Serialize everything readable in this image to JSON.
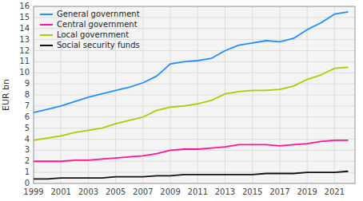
{
  "chart_data": {
    "type": "line",
    "y_label": "EUR bn",
    "x": [
      1999,
      2000,
      2001,
      2002,
      2003,
      2004,
      2005,
      2006,
      2007,
      2008,
      2009,
      2010,
      2011,
      2012,
      2013,
      2014,
      2015,
      2016,
      2017,
      2018,
      2019,
      2020,
      2021,
      2022
    ],
    "series": [
      {
        "name": "General government",
        "color": "#1e90ff",
        "values": [
          6.4,
          6.7,
          7.0,
          7.4,
          7.8,
          8.1,
          8.4,
          8.7,
          9.1,
          9.7,
          10.8,
          11.0,
          11.1,
          11.3,
          12.0,
          12.5,
          12.7,
          12.9,
          12.8,
          13.1,
          13.9,
          14.5,
          15.3,
          15.5
        ]
      },
      {
        "name": "Central government",
        "color": "#ff1493",
        "values": [
          2.0,
          2.0,
          2.0,
          2.1,
          2.1,
          2.2,
          2.3,
          2.4,
          2.5,
          2.7,
          3.0,
          3.1,
          3.1,
          3.2,
          3.3,
          3.5,
          3.5,
          3.5,
          3.4,
          3.5,
          3.6,
          3.8,
          3.9,
          3.9
        ]
      },
      {
        "name": "Local government",
        "color": "#aacc00",
        "values": [
          3.9,
          4.1,
          4.3,
          4.6,
          4.8,
          5.0,
          5.4,
          5.7,
          6.0,
          6.6,
          6.9,
          7.0,
          7.2,
          7.5,
          8.1,
          8.3,
          8.4,
          8.4,
          8.5,
          8.8,
          9.4,
          9.8,
          10.4,
          10.5
        ]
      },
      {
        "name": "Social security funds",
        "color": "#111111",
        "values": [
          0.4,
          0.4,
          0.5,
          0.5,
          0.5,
          0.5,
          0.6,
          0.6,
          0.6,
          0.7,
          0.7,
          0.8,
          0.8,
          0.8,
          0.8,
          0.8,
          0.8,
          0.9,
          0.9,
          0.9,
          1.0,
          1.0,
          1.0,
          1.1
        ]
      }
    ],
    "xlim": [
      1999,
      2022.5
    ],
    "xticks": [
      1999,
      2001,
      2003,
      2005,
      2007,
      2009,
      2011,
      2013,
      2015,
      2017,
      2019,
      2021
    ],
    "ylim": [
      0,
      16
    ],
    "yticks": [
      0,
      1,
      2,
      3,
      4,
      5,
      6,
      7,
      8,
      9,
      10,
      11,
      12,
      13,
      14,
      15,
      16
    ],
    "grid": true,
    "legend": "upper left"
  }
}
